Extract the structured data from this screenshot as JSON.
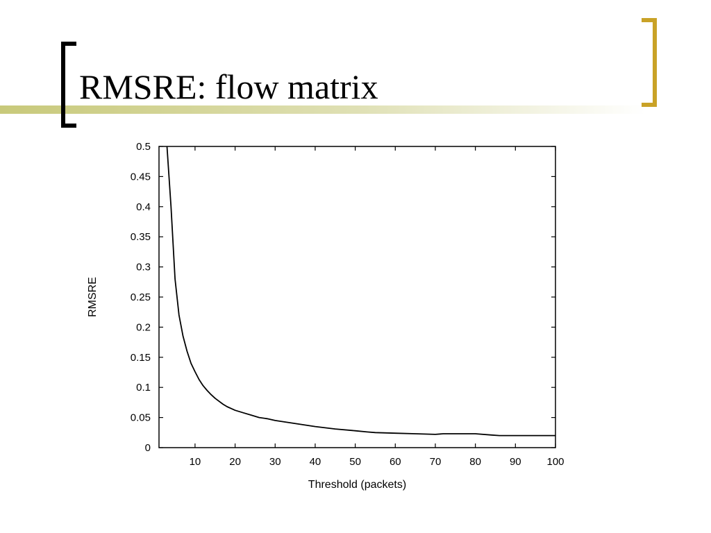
{
  "slide": {
    "title": "RMSRE: flow matrix"
  },
  "colors": {
    "accent_gold": "#c9a227",
    "rule_olive": "#c8c97a",
    "bracket_black": "#000000",
    "line": "#000000"
  },
  "chart_data": {
    "type": "line",
    "title": "",
    "xlabel": "Threshold (packets)",
    "ylabel": "RMSRE",
    "xlim": [
      1,
      100
    ],
    "ylim": [
      0,
      0.5
    ],
    "xticks": [
      10,
      20,
      30,
      40,
      50,
      60,
      70,
      80,
      90,
      100
    ],
    "yticks": [
      0,
      0.05,
      0.1,
      0.15,
      0.2,
      0.25,
      0.3,
      0.35,
      0.4,
      0.45,
      0.5
    ],
    "ytick_labels": [
      "0",
      "0.05",
      "0.1",
      "0.15",
      "0.2",
      "0.25",
      "0.3",
      "0.35",
      "0.4",
      "0.45",
      "0.5"
    ],
    "grid": false,
    "legend": "none",
    "series": [
      {
        "x": [
          3,
          4,
          5,
          6,
          7,
          8,
          9,
          10,
          11,
          12,
          13,
          14,
          15,
          16,
          17,
          18,
          19,
          20,
          22,
          24,
          26,
          28,
          30,
          33,
          36,
          40,
          45,
          50,
          53,
          55,
          60,
          65,
          70,
          72,
          75,
          80,
          84,
          86,
          90,
          95,
          100
        ],
        "y": [
          0.5,
          0.4,
          0.28,
          0.22,
          0.185,
          0.16,
          0.14,
          0.126,
          0.113,
          0.103,
          0.095,
          0.088,
          0.082,
          0.077,
          0.072,
          0.068,
          0.065,
          0.062,
          0.058,
          0.054,
          0.05,
          0.048,
          0.045,
          0.042,
          0.039,
          0.035,
          0.031,
          0.028,
          0.026,
          0.025,
          0.024,
          0.023,
          0.022,
          0.023,
          0.023,
          0.023,
          0.021,
          0.02,
          0.02,
          0.02,
          0.02
        ]
      }
    ]
  }
}
